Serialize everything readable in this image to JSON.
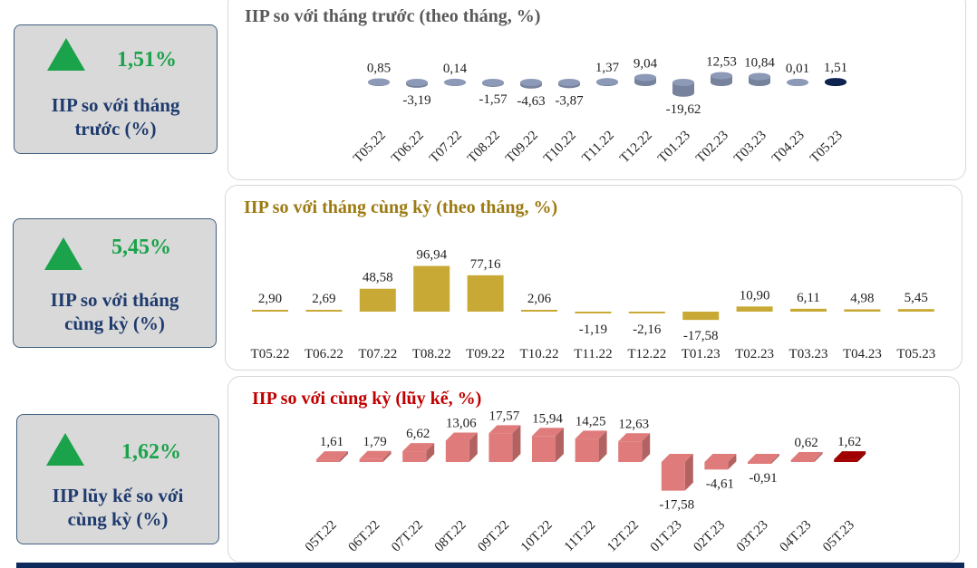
{
  "cards": [
    {
      "value": "1,51%",
      "label_line1": "IIP so với tháng",
      "label_line2": "trước (%)",
      "trend_icon": "triangle-up",
      "color": "#1aa34a"
    },
    {
      "value": "5,45%",
      "label_line1": "IIP so với tháng",
      "label_line2": "cùng kỳ (%)",
      "trend_icon": "triangle-up",
      "color": "#1aa34a"
    },
    {
      "value": "1,62%",
      "label_line1": "IIP lũy kế so với",
      "label_line2": "cùng kỳ (%)",
      "trend_icon": "triangle-up",
      "color": "#1aa34a"
    }
  ],
  "chart_data": [
    {
      "type": "bar",
      "title": "IIP so với tháng trước (theo tháng, %)",
      "title_color": "#595959",
      "categories": [
        "T05.22",
        "T06.22",
        "T07.22",
        "T08.22",
        "T09.22",
        "T10.22",
        "T11.22",
        "T12.22",
        "T01.23",
        "T02.23",
        "T03.23",
        "T04.23",
        "T05.23"
      ],
      "values": [
        0.85,
        -3.19,
        0.14,
        -1.57,
        -4.63,
        -3.87,
        1.37,
        9.04,
        -19.62,
        12.53,
        10.84,
        0.01,
        1.51
      ],
      "labels": [
        "0,85",
        "-3,19",
        "0,14",
        "-1,57",
        "-4,63",
        "-3,87",
        "1,37",
        "9,04",
        "-19,62",
        "12,53",
        "10,84",
        "0,01",
        "1,51"
      ],
      "bar_color": "#8c9ab8",
      "highlight_color": "#0e2350"
    },
    {
      "type": "bar",
      "title": "IIP so với tháng cùng kỳ (theo tháng, %)",
      "title_color": "#9c7a12",
      "categories": [
        "T05.22",
        "T06.22",
        "T07.22",
        "T08.22",
        "T09.22",
        "T10.22",
        "T11.22",
        "T12.22",
        "T01.23",
        "T02.23",
        "T03.23",
        "T04.23",
        "T05.23"
      ],
      "values": [
        2.9,
        2.69,
        48.58,
        96.94,
        77.16,
        2.06,
        -1.19,
        -2.16,
        -17.58,
        10.9,
        6.11,
        4.98,
        5.45
      ],
      "labels": [
        "2,90",
        "2,69",
        "48,58",
        "96,94",
        "77,16",
        "2,06",
        "-1,19",
        "-2,16",
        "-17,58",
        "10,90",
        "6,11",
        "4,98",
        "5,45"
      ],
      "bar_color": "#c9a935",
      "highlight_color": "#c9a935"
    },
    {
      "type": "bar",
      "title": "IIP so với cùng kỳ (lũy kế, %)",
      "title_color": "#c00000",
      "categories": [
        "05T.22",
        "06T.22",
        "07T.22",
        "08T.22",
        "09T.22",
        "10T.22",
        "11T.22",
        "12T.22",
        "01T.23",
        "02T.23",
        "03T.23",
        "04T.23",
        "05T.23"
      ],
      "values": [
        1.61,
        1.79,
        6.62,
        13.06,
        17.57,
        15.94,
        14.25,
        12.63,
        -17.58,
        -4.61,
        -0.91,
        0.62,
        1.62
      ],
      "labels": [
        "1,61",
        "1,79",
        "6,62",
        "13,06",
        "17,57",
        "15,94",
        "14,25",
        "12,63",
        "-17,58",
        "-4,61",
        "-0,91",
        "0,62",
        "1,62"
      ],
      "bar_color": "#e07b7b",
      "highlight_color": "#a00000"
    }
  ]
}
